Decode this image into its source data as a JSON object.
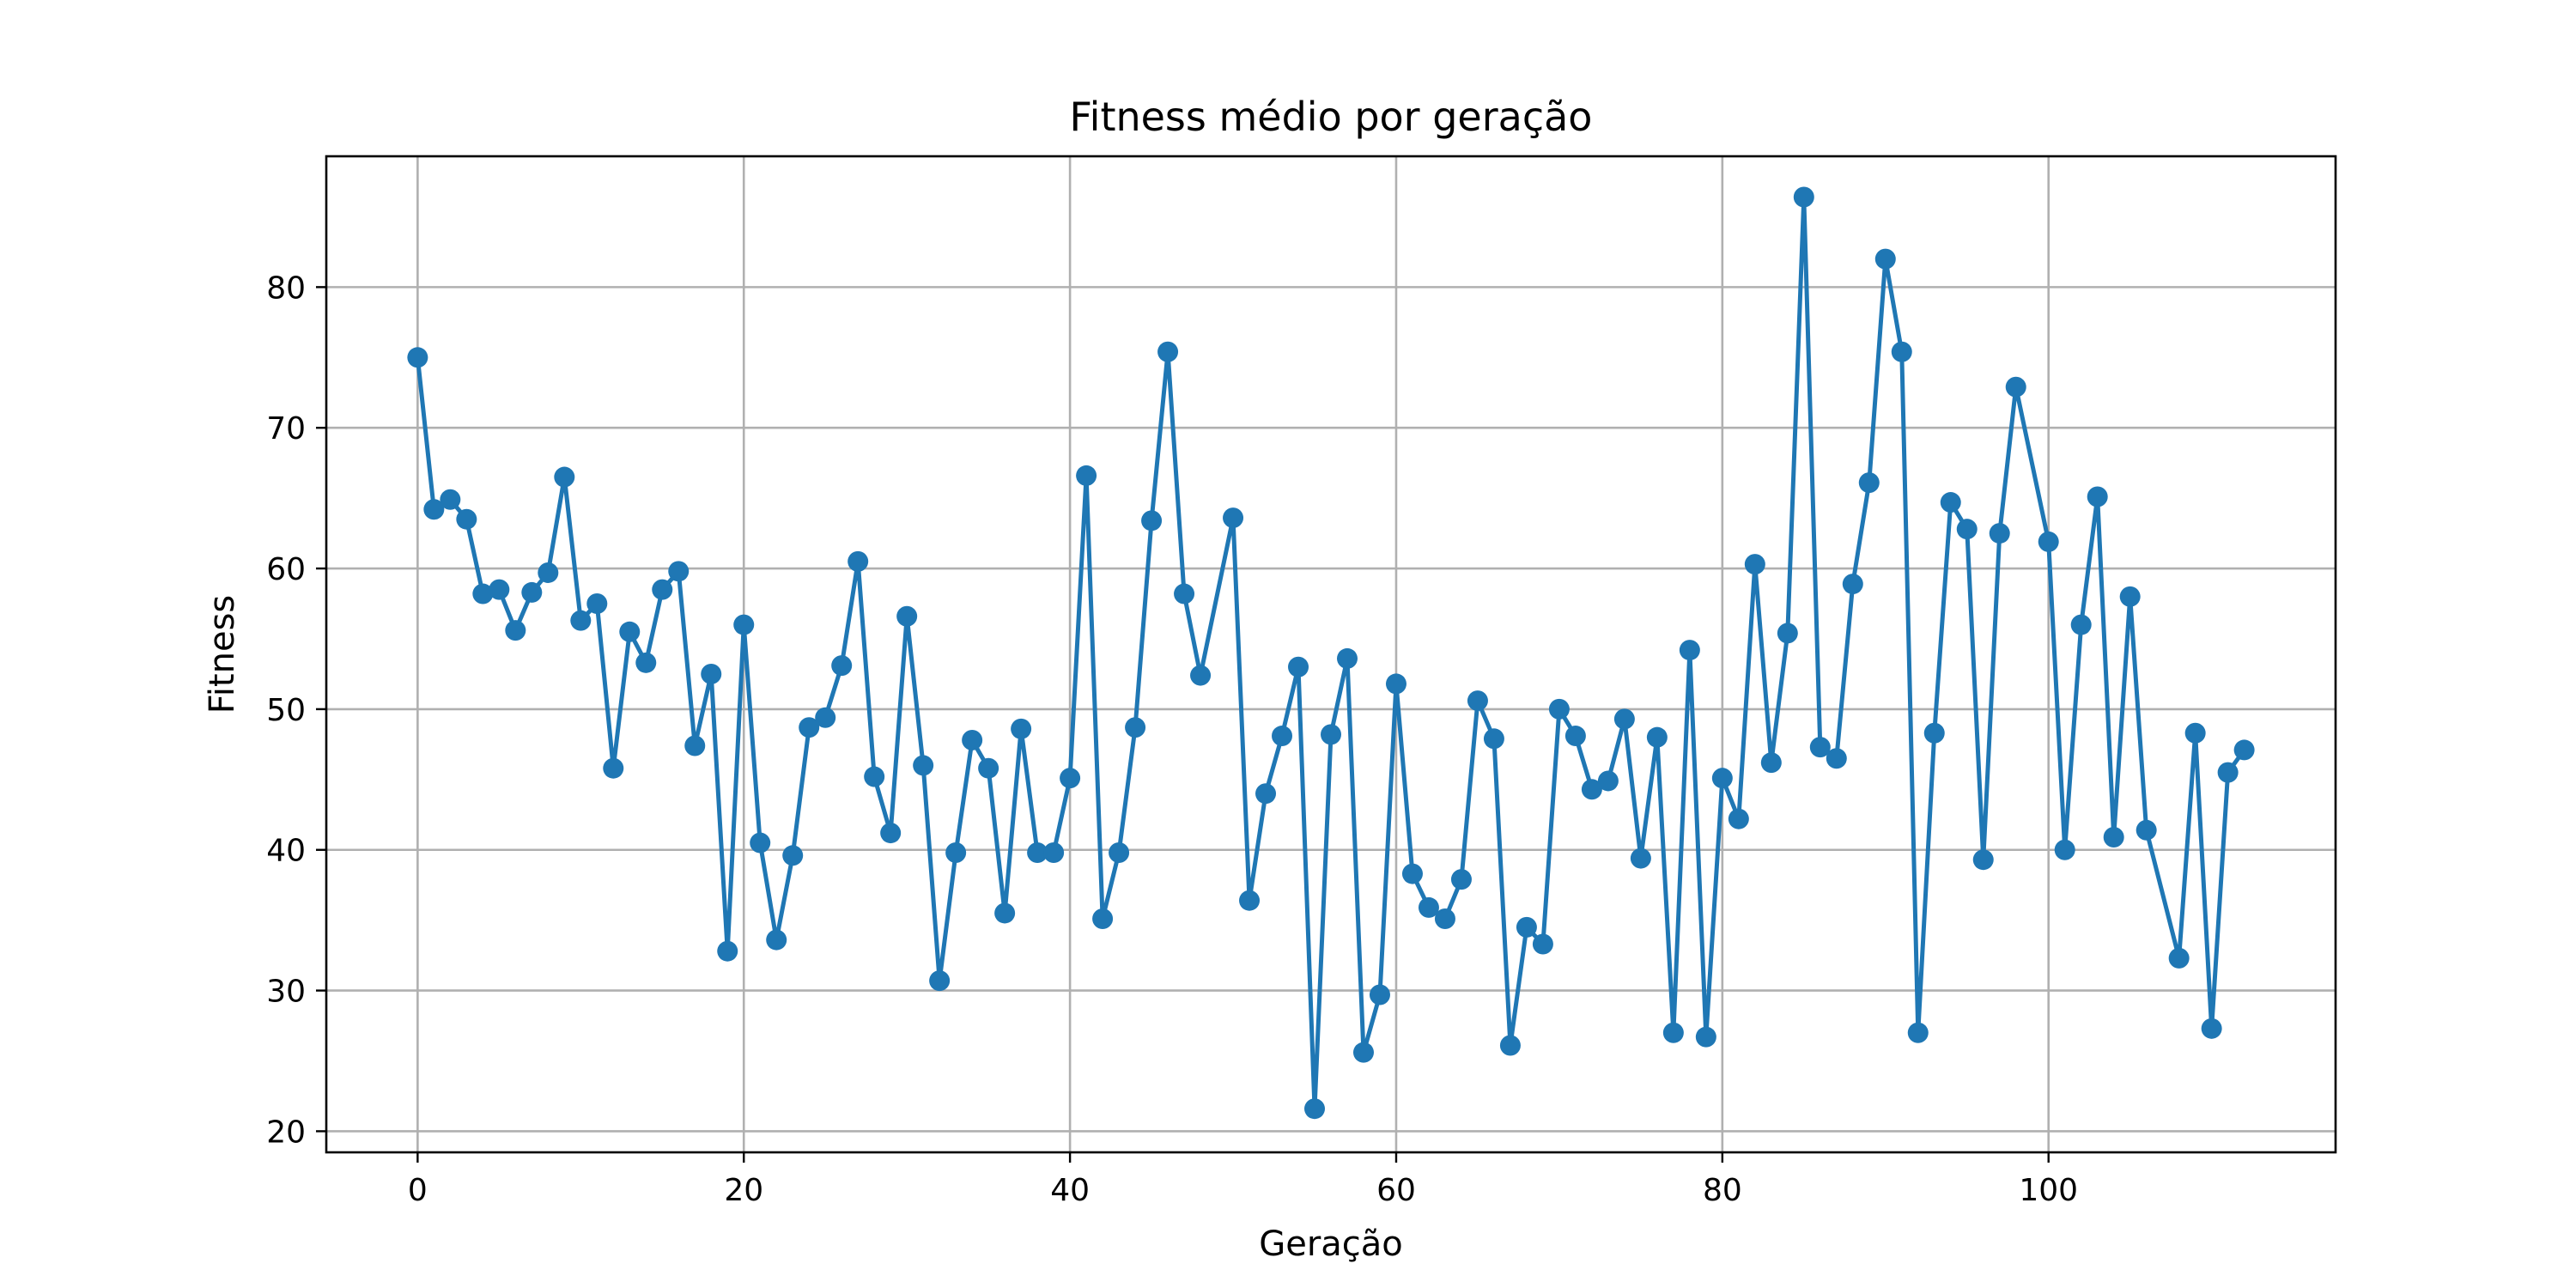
{
  "chart_data": {
    "type": "line",
    "title": "Fitness médio por geração",
    "xlabel": "Geração",
    "ylabel": "Fitness",
    "xlim": [
      -5.6,
      117.6
    ],
    "ylim": [
      18.5,
      89.3
    ],
    "xticks": [
      0,
      20,
      40,
      60,
      80,
      100
    ],
    "yticks": [
      20,
      30,
      40,
      50,
      60,
      70,
      80
    ],
    "grid": true,
    "marker": "circle",
    "color": "#1f77b4",
    "series": [
      {
        "x": [
          0,
          1,
          2,
          3,
          4,
          5,
          6,
          7,
          8,
          9,
          10,
          11,
          12,
          13,
          14,
          15,
          16,
          17,
          18,
          19,
          20,
          21,
          22,
          23,
          24,
          25,
          26,
          27,
          28,
          29,
          30,
          31,
          32,
          33,
          34,
          35,
          36,
          37,
          38,
          39,
          40,
          41,
          42,
          43,
          44,
          45,
          46,
          47,
          48,
          50,
          51,
          52,
          53,
          54,
          55,
          56,
          57,
          58,
          59,
          60,
          61,
          62,
          63,
          64,
          65,
          66,
          67,
          68,
          69,
          70,
          71,
          72,
          73,
          74,
          75,
          76,
          77,
          78,
          79,
          80,
          81,
          82,
          83,
          84,
          85,
          86,
          87,
          88,
          89,
          90,
          91,
          92,
          93,
          94,
          95,
          96,
          97,
          98,
          100,
          101,
          102,
          103,
          104,
          105,
          106,
          108,
          109,
          110,
          111,
          112
        ],
        "y": [
          75.0,
          64.2,
          64.9,
          63.5,
          58.2,
          58.5,
          55.6,
          58.3,
          59.7,
          66.5,
          56.3,
          57.5,
          45.8,
          55.5,
          53.3,
          58.5,
          59.8,
          47.4,
          52.5,
          32.8,
          56.0,
          40.5,
          33.6,
          39.6,
          48.7,
          49.4,
          53.1,
          60.5,
          45.2,
          41.2,
          56.6,
          46.0,
          30.7,
          39.8,
          47.8,
          45.8,
          35.5,
          48.6,
          39.8,
          39.8,
          45.1,
          66.6,
          35.1,
          39.8,
          48.7,
          63.4,
          75.4,
          58.2,
          52.4,
          63.6,
          36.4,
          44.0,
          48.1,
          53.0,
          21.6,
          48.2,
          53.6,
          25.6,
          29.7,
          51.8,
          38.3,
          35.9,
          35.1,
          37.9,
          50.6,
          47.9,
          26.1,
          34.5,
          33.3,
          50.0,
          48.1,
          44.3,
          44.9,
          49.3,
          39.4,
          48.0,
          27.0,
          54.2,
          26.7,
          45.1,
          42.2,
          60.3,
          46.2,
          55.4,
          86.4,
          47.3,
          46.5,
          58.9,
          66.1,
          82.0,
          75.4,
          27.0,
          48.3,
          64.7,
          62.8,
          39.3,
          62.5,
          72.9,
          61.9,
          40.0,
          56.0,
          65.1,
          40.9,
          58.0,
          41.4,
          32.3,
          48.3,
          27.3,
          45.5,
          47.1
        ]
      }
    ]
  }
}
